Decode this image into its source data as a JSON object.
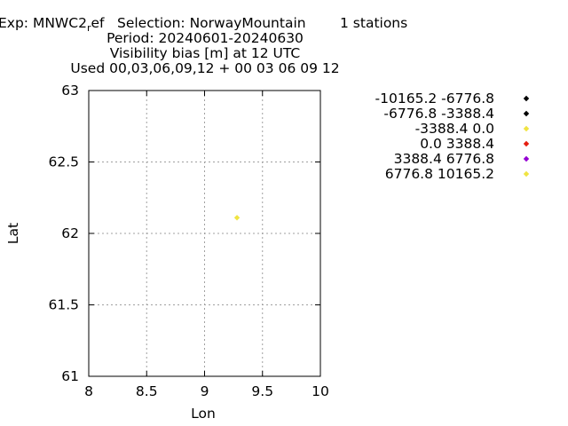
{
  "header": {
    "exp_label": "Exp: MNWC2",
    "exp_sub": "r",
    "exp_after": "ef",
    "selection": "Selection: NorwayMountain",
    "stations": "1 stations",
    "period": "Period: 20240601-20240630",
    "title": "Visibility bias [m] at  12 UTC",
    "used": "Used 00,03,06,09,12 + 00 03 06 09 12"
  },
  "chart_data": {
    "type": "scatter",
    "xlabel": "Lon",
    "ylabel": "Lat",
    "xlim": [
      8,
      10
    ],
    "ylim": [
      61,
      63
    ],
    "xticks": [
      8,
      8.5,
      9,
      9.5,
      10
    ],
    "xtick_labels": [
      "8",
      "8.5",
      "9",
      "9.5",
      "10"
    ],
    "yticks": [
      61,
      61.5,
      62,
      62.5,
      63
    ],
    "ytick_labels": [
      "61",
      "61.5",
      "62",
      "62.5",
      "63"
    ],
    "grid": true,
    "legend_position": "right",
    "legend": [
      {
        "label": "-10165.2 -6776.8",
        "color": "#000000"
      },
      {
        "label": "-6776.8 -3388.4",
        "color": "#000000"
      },
      {
        "label": "-3388.4 0.0",
        "color": "#f0e442"
      },
      {
        "label": "0.0 3388.4",
        "color": "#e51e10"
      },
      {
        "label": "3388.4 6776.8",
        "color": "#9400d3"
      },
      {
        "label": "6776.8 10165.2",
        "color": "#f0e442"
      }
    ],
    "points": [
      {
        "x": 9.28,
        "y": 62.11,
        "color": "#f0e442"
      }
    ]
  }
}
